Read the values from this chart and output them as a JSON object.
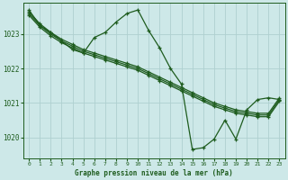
{
  "bg_color": "#cde8e8",
  "grid_color": "#afd0d0",
  "line_color": "#1e5c1e",
  "title": "Graphe pression niveau de la mer (hPa)",
  "xlim": [
    -0.5,
    23.5
  ],
  "ylim": [
    1019.4,
    1023.9
  ],
  "yticks": [
    1020,
    1021,
    1022,
    1023
  ],
  "xticks": [
    0,
    1,
    2,
    3,
    4,
    5,
    6,
    7,
    8,
    9,
    10,
    11,
    12,
    13,
    14,
    15,
    16,
    17,
    18,
    19,
    20,
    21,
    22,
    23
  ],
  "series": [
    {
      "x": [
        0,
        1,
        2,
        3,
        4,
        5,
        6,
        7,
        8,
        9,
        10,
        11,
        12,
        13,
        14,
        15,
        16,
        17,
        18,
        19,
        20,
        21,
        22,
        23
      ],
      "y": [
        1023.55,
        1023.2,
        1022.95,
        1022.75,
        1022.6,
        1022.45,
        1022.35,
        1022.25,
        1022.15,
        1022.05,
        1021.95,
        1021.8,
        1021.65,
        1021.5,
        1021.35,
        1021.2,
        1021.05,
        1020.9,
        1020.8,
        1020.7,
        1020.65,
        1020.6,
        1020.6,
        1021.05
      ]
    },
    {
      "x": [
        0,
        1,
        2,
        3,
        4,
        5,
        6,
        7,
        8,
        9,
        10,
        11,
        12,
        13,
        14,
        15,
        16,
        17,
        18,
        19,
        20,
        21,
        22,
        23
      ],
      "y": [
        1023.6,
        1023.25,
        1023.0,
        1022.8,
        1022.65,
        1022.5,
        1022.4,
        1022.3,
        1022.2,
        1022.1,
        1022.0,
        1021.85,
        1021.7,
        1021.55,
        1021.4,
        1021.25,
        1021.1,
        1020.95,
        1020.85,
        1020.75,
        1020.7,
        1020.65,
        1020.65,
        1021.1
      ]
    },
    {
      "x": [
        0,
        1,
        2,
        3,
        4,
        5,
        6,
        7,
        8,
        9,
        10,
        11,
        12,
        13,
        14,
        15,
        16,
        17,
        18,
        19,
        20,
        21,
        22,
        23
      ],
      "y": [
        1023.65,
        1023.3,
        1023.05,
        1022.85,
        1022.7,
        1022.55,
        1022.45,
        1022.35,
        1022.25,
        1022.15,
        1022.05,
        1021.9,
        1021.75,
        1021.6,
        1021.45,
        1021.3,
        1021.15,
        1021.0,
        1020.9,
        1020.8,
        1020.75,
        1020.7,
        1020.7,
        1021.15
      ]
    },
    {
      "x": [
        0,
        1,
        2,
        3,
        4,
        5,
        6,
        7,
        8,
        9,
        10,
        11,
        12,
        13,
        14,
        15,
        16,
        17,
        18,
        19,
        20,
        21,
        22,
        23
      ],
      "y": [
        1023.7,
        1023.25,
        1023.05,
        1022.8,
        1022.55,
        1022.45,
        1022.9,
        1023.05,
        1023.35,
        1023.6,
        1023.7,
        1023.1,
        1022.6,
        1022.0,
        1021.55,
        1019.65,
        1019.7,
        1019.95,
        1020.5,
        1019.95,
        1020.8,
        1021.1,
        1021.15,
        1021.1
      ]
    }
  ]
}
